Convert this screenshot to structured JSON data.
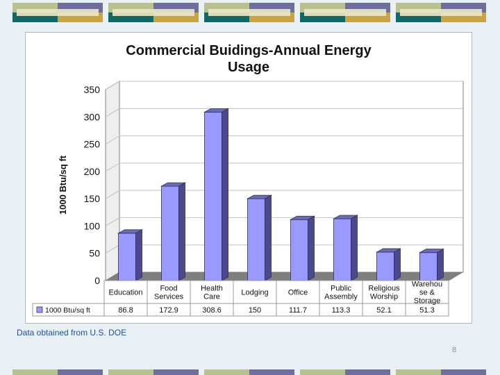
{
  "footer": {
    "source_note": "Data obtained from U.S. DOE",
    "slide_number": "8"
  },
  "colors": {
    "bar_front": "#9999ff",
    "bar_side": "#4b4b8c",
    "bar_top": "#6b6bb8",
    "floor": "#7f7f7f",
    "grid": "#c0c0c0",
    "deco_teal": "#0e6a66",
    "deco_gold": "#c9a441",
    "deco_sage": "#b9c190",
    "deco_purple": "#6e6f9c"
  },
  "chart_data": {
    "type": "bar",
    "title": "Commercial Buidings-Annual Energy Usage",
    "title_lines": [
      "Commercial Buidings-Annual Energy",
      "Usage"
    ],
    "ylabel": "1000 Btu/sq ft",
    "xlabel": "",
    "ylim": [
      0,
      350
    ],
    "yticks": [
      "0",
      "50",
      "100",
      "150",
      "200",
      "250",
      "300",
      "350"
    ],
    "grid": true,
    "categories": [
      [
        "Education"
      ],
      [
        "Food",
        "Services"
      ],
      [
        "Health",
        "Care"
      ],
      [
        "Lodging"
      ],
      [
        "Office"
      ],
      [
        "Public",
        "Assembly"
      ],
      [
        "Religious",
        "Worship"
      ],
      [
        "Warehou",
        "se &",
        "Storage"
      ]
    ],
    "series": [
      {
        "name": "1000 Btu/sq ft",
        "values": [
          86.8,
          172.9,
          308.6,
          150,
          111.7,
          113.3,
          52.1,
          51.3
        ],
        "value_labels": [
          "86.8",
          "172.9",
          "308.6",
          "150",
          "111.7",
          "113.3",
          "52.1",
          "51.3"
        ]
      }
    ]
  }
}
